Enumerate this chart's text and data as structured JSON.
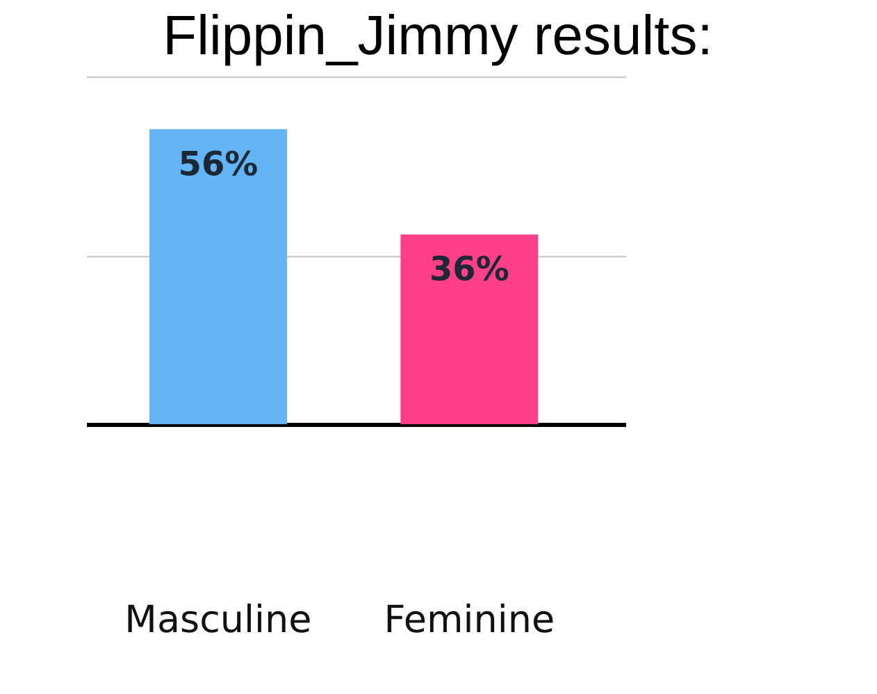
{
  "chart_data": {
    "type": "bar",
    "title": "Flippin_Jimmy results:",
    "categories": [
      "Masculine",
      "Feminine"
    ],
    "values": [
      56,
      36
    ],
    "colors": [
      "#64b5f6",
      "#ff4088"
    ],
    "value_labels": [
      "56%",
      "36%"
    ],
    "ylim": [
      0,
      66
    ],
    "yticks": [
      {
        "value": 32,
        "label": null
      },
      {
        "value": 66,
        "label": null
      }
    ],
    "grid": "y",
    "tick_labels": "x"
  }
}
